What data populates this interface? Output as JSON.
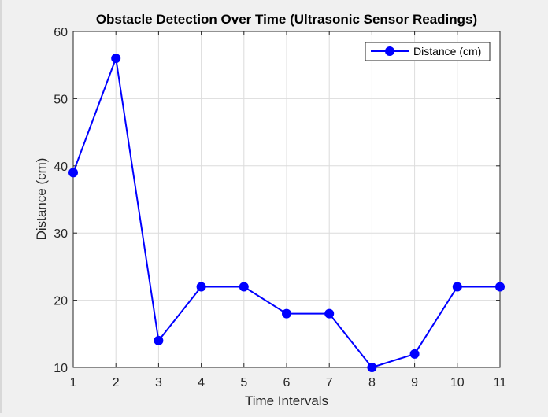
{
  "colors": {
    "figure_bg": "#f0f0f0",
    "axes_bg": "#ffffff",
    "series": "#0000ff",
    "grid": "#dcdcdc",
    "axis": "#262626"
  },
  "chart_data": {
    "type": "line",
    "title": "Obstacle Detection Over Time (Ultrasonic Sensor Readings)",
    "xlabel": "Time Intervals",
    "ylabel": "Distance (cm)",
    "xlim": [
      1,
      11
    ],
    "ylim": [
      10,
      60
    ],
    "xticks": [
      1,
      2,
      3,
      4,
      5,
      6,
      7,
      8,
      9,
      10,
      11
    ],
    "yticks": [
      10,
      20,
      30,
      40,
      50,
      60
    ],
    "grid": true,
    "legend_position": "top-right",
    "x": [
      1,
      2,
      3,
      4,
      5,
      6,
      7,
      8,
      9,
      10,
      11
    ],
    "series": [
      {
        "name": "Distance (cm)",
        "color": "#0000ff",
        "marker": "circle",
        "values": [
          39,
          56,
          14,
          22,
          22,
          18,
          18,
          10,
          12,
          22,
          22
        ]
      }
    ]
  }
}
